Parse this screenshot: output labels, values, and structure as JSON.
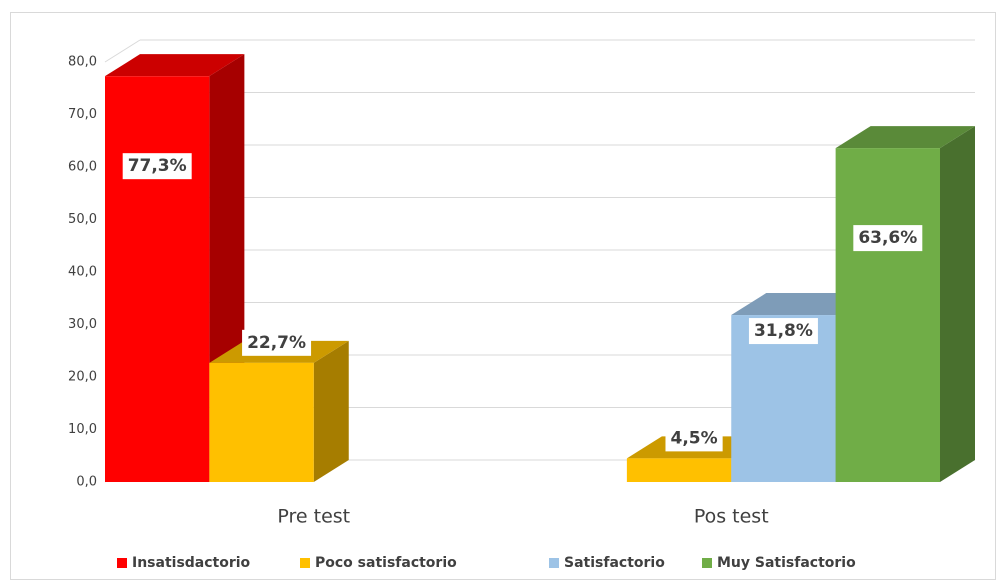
{
  "chart_data": {
    "type": "bar3d",
    "categories": [
      "Pre test",
      "Pos test"
    ],
    "series": [
      {
        "name": "Insatisdactorio",
        "color": "#ff0000",
        "values": [
          77.3,
          null
        ],
        "value_labels": [
          "77,3%",
          null
        ]
      },
      {
        "name": "Poco satisfactorio",
        "color": "#ffc000",
        "values": [
          22.7,
          4.5
        ],
        "value_labels": [
          "22,7%",
          "4,5%"
        ]
      },
      {
        "name": "Satisfactorio",
        "color": "#9dc3e6",
        "values": [
          null,
          31.8
        ],
        "value_labels": [
          null,
          "31,8%"
        ]
      },
      {
        "name": "Muy Satisfactorio",
        "color": "#70ad47",
        "values": [
          null,
          63.6
        ],
        "value_labels": [
          null,
          "63,6%"
        ]
      }
    ],
    "ylim": [
      0,
      80
    ],
    "yticks": [
      {
        "value": 0,
        "label": "0,0"
      },
      {
        "value": 10,
        "label": "10,0"
      },
      {
        "value": 20,
        "label": "20,0"
      },
      {
        "value": 30,
        "label": "30,0"
      },
      {
        "value": 40,
        "label": "40,0"
      },
      {
        "value": 50,
        "label": "50,0"
      },
      {
        "value": 60,
        "label": "60,0"
      },
      {
        "value": 70,
        "label": "70,0"
      },
      {
        "value": 80,
        "label": "80,0"
      }
    ],
    "grid": true,
    "legend": "bottom"
  }
}
